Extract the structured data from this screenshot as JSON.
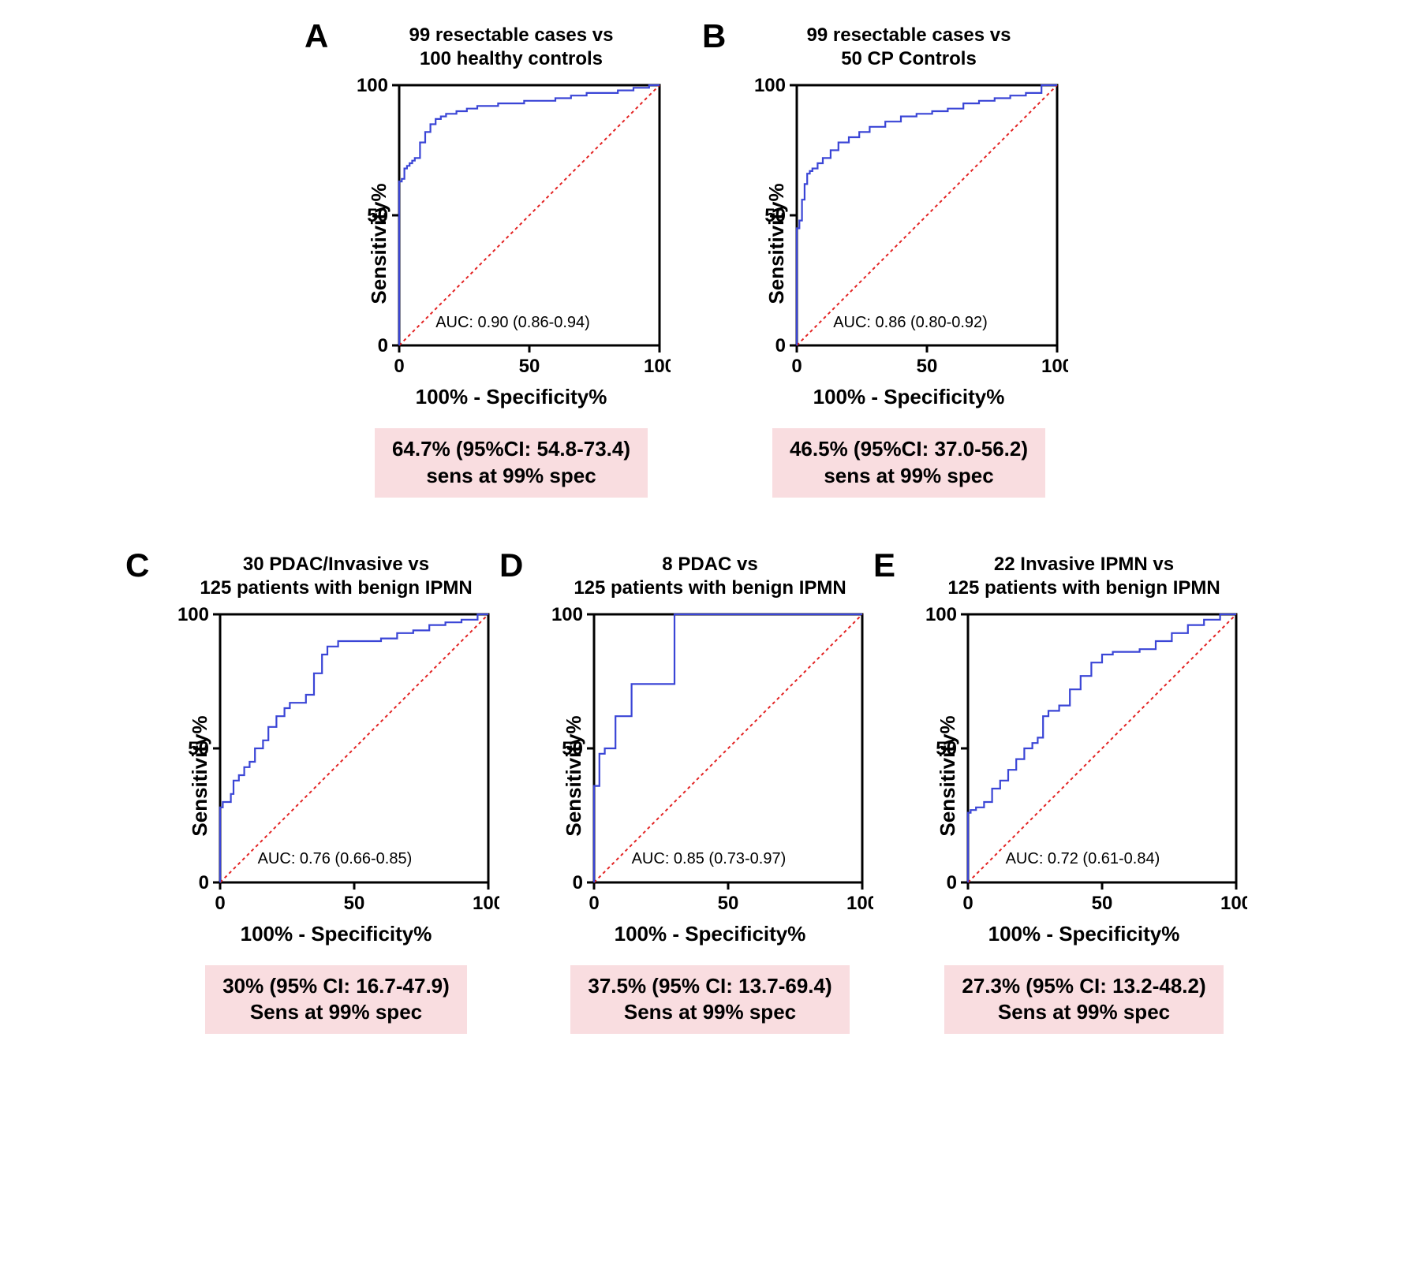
{
  "global": {
    "roc_line_color": "#3a45d6",
    "diagonal_color": "#e32424",
    "axis_color": "#000000",
    "bg_color": "#ffffff",
    "callout_bg": "#f9dde0",
    "line_width": 2.2,
    "diagonal_dash": "4,4",
    "axis_width": 3,
    "ylabel": "Sensitivity%",
    "xlabel": "100% - Specificity%",
    "xlim": [
      0,
      100
    ],
    "ylim": [
      0,
      100
    ],
    "ticks": [
      0,
      50,
      100
    ],
    "title_fontsize": 24,
    "label_fontsize": 26,
    "tick_fontsize": 24,
    "auc_fontsize": 20,
    "callout_fontsize": 26,
    "letter_fontsize": 42
  },
  "panels": {
    "A": {
      "letter": "A",
      "title": "99 resectable cases vs\n100 healthy controls",
      "auc_text": "AUC: 0.90 (0.86-0.94)",
      "callout": "64.7% (95%CI: 54.8-73.4)\nsens at 99% spec",
      "roc_points": [
        [
          0,
          0
        ],
        [
          0,
          20
        ],
        [
          1,
          63
        ],
        [
          2,
          64
        ],
        [
          3,
          68
        ],
        [
          4,
          69
        ],
        [
          5,
          70
        ],
        [
          6,
          71
        ],
        [
          8,
          72
        ],
        [
          10,
          78
        ],
        [
          12,
          82
        ],
        [
          14,
          85
        ],
        [
          16,
          87
        ],
        [
          18,
          88
        ],
        [
          22,
          89
        ],
        [
          26,
          90
        ],
        [
          30,
          91
        ],
        [
          34,
          92
        ],
        [
          38,
          92
        ],
        [
          42,
          93
        ],
        [
          48,
          93
        ],
        [
          54,
          94
        ],
        [
          60,
          94
        ],
        [
          66,
          95
        ],
        [
          72,
          96
        ],
        [
          78,
          97
        ],
        [
          84,
          97
        ],
        [
          90,
          98
        ],
        [
          96,
          99
        ],
        [
          100,
          100
        ]
      ]
    },
    "B": {
      "letter": "B",
      "title": "99 resectable cases vs\n50 CP Controls",
      "auc_text": "AUC: 0.86 (0.80-0.92)",
      "callout": "46.5% (95%CI: 37.0-56.2)\nsens at 99% spec",
      "roc_points": [
        [
          0,
          0
        ],
        [
          0,
          15
        ],
        [
          1,
          45
        ],
        [
          2,
          48
        ],
        [
          3,
          56
        ],
        [
          4,
          62
        ],
        [
          5,
          66
        ],
        [
          6,
          67
        ],
        [
          8,
          68
        ],
        [
          10,
          70
        ],
        [
          13,
          72
        ],
        [
          16,
          75
        ],
        [
          20,
          78
        ],
        [
          24,
          80
        ],
        [
          28,
          82
        ],
        [
          34,
          84
        ],
        [
          40,
          86
        ],
        [
          46,
          88
        ],
        [
          52,
          89
        ],
        [
          58,
          90
        ],
        [
          64,
          91
        ],
        [
          70,
          93
        ],
        [
          76,
          94
        ],
        [
          82,
          95
        ],
        [
          88,
          96
        ],
        [
          94,
          97
        ],
        [
          100,
          100
        ]
      ]
    },
    "C": {
      "letter": "C",
      "title": "30 PDAC/Invasive vs\n125 patients with benign IPMN",
      "auc_text": "AUC: 0.76 (0.66-0.85)",
      "callout": "30% (95% CI: 16.7-47.9)\nSens at 99% spec",
      "roc_points": [
        [
          0,
          0
        ],
        [
          0,
          12
        ],
        [
          1,
          28
        ],
        [
          2,
          30
        ],
        [
          4,
          30
        ],
        [
          5,
          33
        ],
        [
          7,
          38
        ],
        [
          9,
          40
        ],
        [
          11,
          43
        ],
        [
          13,
          45
        ],
        [
          16,
          50
        ],
        [
          18,
          53
        ],
        [
          21,
          58
        ],
        [
          24,
          62
        ],
        [
          26,
          65
        ],
        [
          28,
          67
        ],
        [
          32,
          67
        ],
        [
          35,
          70
        ],
        [
          38,
          78
        ],
        [
          40,
          85
        ],
        [
          44,
          88
        ],
        [
          48,
          90
        ],
        [
          54,
          90
        ],
        [
          60,
          90
        ],
        [
          66,
          91
        ],
        [
          72,
          93
        ],
        [
          78,
          94
        ],
        [
          84,
          96
        ],
        [
          90,
          97
        ],
        [
          96,
          98
        ],
        [
          100,
          100
        ]
      ]
    },
    "D": {
      "letter": "D",
      "title": "8 PDAC vs\n125 patients with benign IPMN",
      "auc_text": "AUC: 0.85 (0.73-0.97)",
      "callout": "37.5% (95% CI: 13.7-69.4)\nSens at 99% spec",
      "roc_points": [
        [
          0,
          0
        ],
        [
          0,
          36
        ],
        [
          2,
          36
        ],
        [
          4,
          48
        ],
        [
          6,
          50
        ],
        [
          8,
          50
        ],
        [
          10,
          62
        ],
        [
          14,
          62
        ],
        [
          18,
          74
        ],
        [
          22,
          74
        ],
        [
          26,
          74
        ],
        [
          30,
          74
        ],
        [
          34,
          100
        ],
        [
          40,
          100
        ],
        [
          50,
          100
        ],
        [
          60,
          100
        ],
        [
          70,
          100
        ],
        [
          80,
          100
        ],
        [
          90,
          100
        ],
        [
          100,
          100
        ]
      ]
    },
    "E": {
      "letter": "E",
      "title": "22 Invasive IPMN vs\n125 patients with benign IPMN",
      "auc_text": "AUC: 0.72 (0.61-0.84)",
      "callout": "27.3% (95% CI: 13.2-48.2)\nSens at 99% spec",
      "roc_points": [
        [
          0,
          0
        ],
        [
          0,
          10
        ],
        [
          1,
          26
        ],
        [
          3,
          27
        ],
        [
          6,
          28
        ],
        [
          9,
          30
        ],
        [
          12,
          35
        ],
        [
          15,
          38
        ],
        [
          18,
          42
        ],
        [
          21,
          46
        ],
        [
          24,
          50
        ],
        [
          26,
          52
        ],
        [
          28,
          54
        ],
        [
          30,
          62
        ],
        [
          34,
          64
        ],
        [
          38,
          66
        ],
        [
          42,
          72
        ],
        [
          46,
          77
        ],
        [
          50,
          82
        ],
        [
          54,
          85
        ],
        [
          58,
          86
        ],
        [
          64,
          86
        ],
        [
          70,
          87
        ],
        [
          76,
          90
        ],
        [
          82,
          93
        ],
        [
          88,
          96
        ],
        [
          94,
          98
        ],
        [
          100,
          100
        ]
      ]
    }
  }
}
